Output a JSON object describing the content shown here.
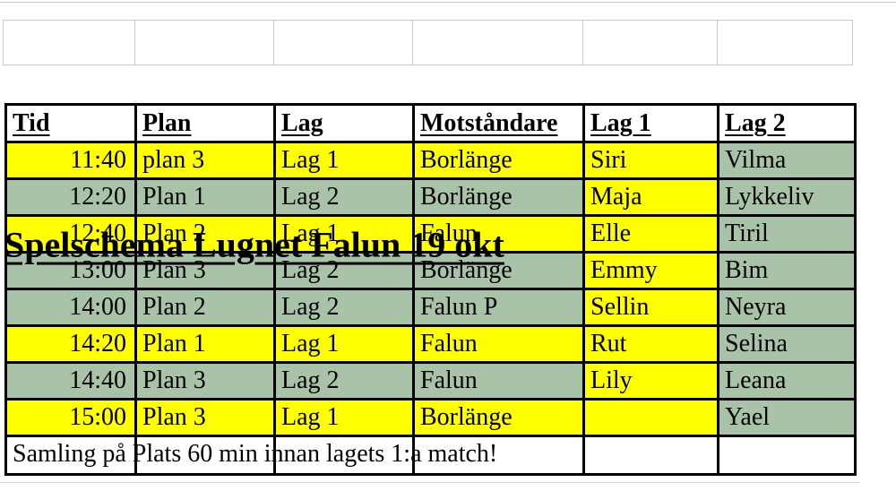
{
  "title": {
    "text": "Spelschema Lugnet Falun 19 okt"
  },
  "table": {
    "headers": [
      "Tid",
      "Plan",
      "Lag",
      "Motståndare",
      "Lag 1",
      "Lag 2"
    ],
    "rows": [
      [
        "11:40",
        "plan 3",
        "Lag 1",
        "Borlänge",
        "Siri",
        "Vilma"
      ],
      [
        "12:20",
        "Plan 1",
        "Lag 2",
        "Borlänge",
        "Maja",
        "Lykkeliv"
      ],
      [
        "12:40",
        "Plan 2",
        "Lag 1",
        "Falun",
        "Elle",
        "Tiril"
      ],
      [
        "13:00",
        "Plan 3",
        "Lag 2",
        "Borlänge",
        "Emmy",
        "Bim"
      ],
      [
        "14:00",
        "Plan 2",
        "Lag 2",
        "Falun P",
        "Sellin",
        "Neyra"
      ],
      [
        "14:20",
        "Plan 1",
        "Lag 1",
        "Falun",
        "Rut",
        "Selina"
      ],
      [
        "14:40",
        "Plan 3",
        "Lag 2",
        "Falun",
        "Lily",
        "Leana"
      ],
      [
        "15:00",
        "Plan 3",
        "Lag 1",
        "Borlänge",
        "",
        "Yael"
      ]
    ],
    "row_highlight": [
      "yellow",
      "green",
      "yellow",
      "green",
      "green",
      "yellow",
      "green",
      "yellow"
    ],
    "column_highlight": {
      "lag1_column": "yellow",
      "lag2_column": "green"
    }
  },
  "footer": {
    "text": "Samling på Plats 60 min innan lagets 1:a match!"
  },
  "colors": {
    "highlight_yellow": "#FFFF00",
    "highlight_green": "#A9C3A9",
    "table_border": "#000000",
    "faint_grid": "#C9C9D6"
  }
}
